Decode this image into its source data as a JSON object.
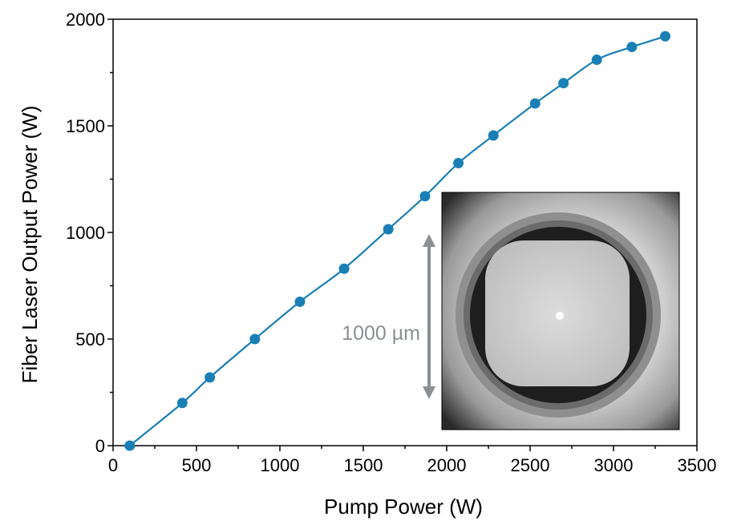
{
  "colors": {
    "series": "#1a7fb5",
    "axis": "#000000",
    "scale_bar": "#8a8f93"
  },
  "chart_data": {
    "type": "line",
    "xlabel": "Pump Power (W)",
    "ylabel": "Fiber Laser Output Power (W)",
    "xlim": [
      0,
      3500
    ],
    "ylim": [
      0,
      2000
    ],
    "xticks": [
      0,
      500,
      1000,
      1500,
      2000,
      2500,
      3000,
      3500
    ],
    "yticks": [
      0,
      500,
      1000,
      1500,
      2000
    ],
    "grid": false,
    "legend": "none",
    "series": [
      {
        "x": [
          100,
          415,
          580,
          850,
          1120,
          1385,
          1650,
          1870,
          2070,
          2280,
          2530,
          2700,
          2900,
          3110,
          3310
        ],
        "y": [
          0,
          200,
          320,
          500,
          675,
          830,
          1015,
          1170,
          1325,
          1455,
          1605,
          1700,
          1810,
          1870,
          1920
        ]
      }
    ],
    "inset": {
      "description_label": "1000 µm"
    }
  }
}
